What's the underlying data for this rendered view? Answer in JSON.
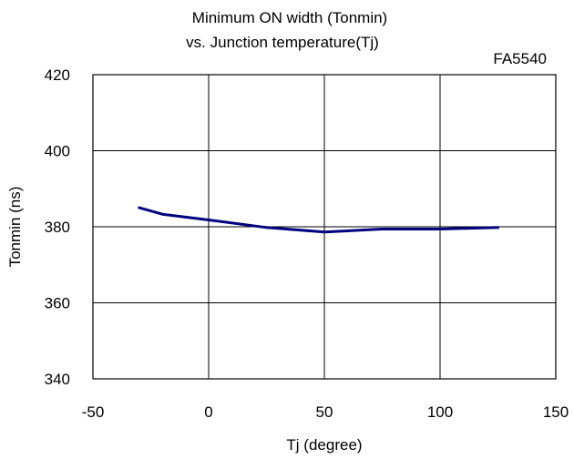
{
  "chart_data": {
    "type": "line",
    "title": [
      "Minimum ON width (Tonmin)",
      "vs. Junction temperature(Tj)"
    ],
    "annotation": "FA5540",
    "xlabel": "Tj (degree)",
    "ylabel": "Tonmin (ns)",
    "xlim": [
      -50,
      150
    ],
    "ylim": [
      340,
      420
    ],
    "xticks": [
      -50,
      0,
      50,
      100,
      150
    ],
    "yticks": [
      340,
      360,
      380,
      400,
      420
    ],
    "grid": true,
    "series": [
      {
        "color": "#000080",
        "x": [
          -30,
          -20,
          0,
          25,
          50,
          75,
          100,
          125
        ],
        "y": [
          385.0,
          383.3,
          381.8,
          379.8,
          378.6,
          379.4,
          379.4,
          379.8
        ]
      }
    ]
  }
}
